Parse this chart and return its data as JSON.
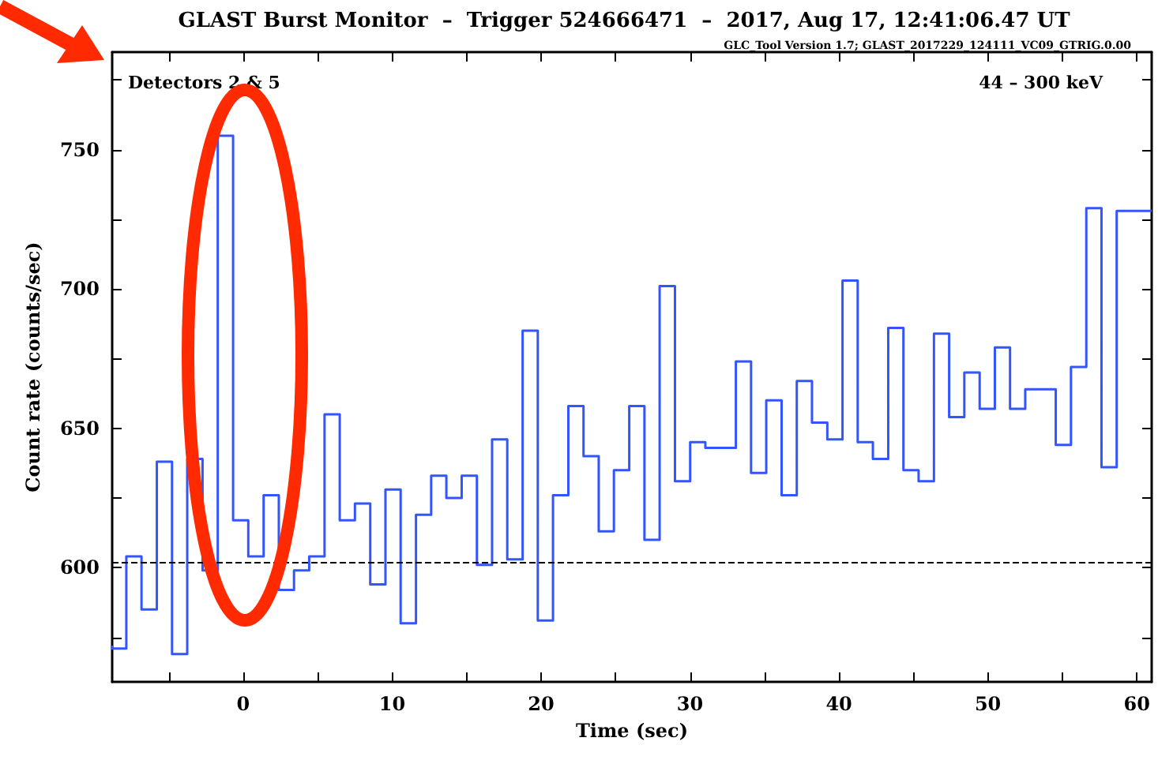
{
  "chart_data": {
    "type": "step",
    "title": "GLAST Burst Monitor  –  Trigger 524666471  –  2017, Aug 17, 12:41:06.47 UT",
    "xlabel": "Time (sec)",
    "ylabel": "Count rate (counts/sec)",
    "annotations": [
      "GLC_Tool Version 1.7; GLAST_2017229_124111_VC09_GTRIG.0.00",
      "Detectors 2 & 5",
      "44 – 300 keV"
    ],
    "x": [
      -8.8,
      -7.85,
      -6.83,
      -5.8,
      -4.78,
      -3.76,
      -2.73,
      -1.71,
      -0.68,
      0.34,
      1.37,
      2.39,
      3.41,
      4.43,
      5.46,
      6.48,
      7.5,
      8.53,
      9.55,
      10.57,
      11.6,
      12.62,
      13.64,
      14.67,
      15.69,
      16.71,
      17.73,
      18.76,
      19.78,
      20.8,
      21.83,
      22.85,
      23.87,
      24.89,
      25.92,
      26.94,
      27.96,
      28.99,
      30.01,
      31.03,
      32.06,
      33.08,
      34.1,
      35.12,
      36.15,
      37.17,
      38.19,
      39.22,
      40.24,
      41.26,
      42.28,
      43.31,
      44.33,
      45.35,
      46.38,
      47.4,
      48.42,
      49.45,
      50.47,
      51.49,
      52.51,
      53.54,
      54.56,
      55.58,
      56.61,
      57.63,
      58.65,
      59.67,
      61.0
    ],
    "series": [
      {
        "color": "#3355ff",
        "values": [
          572,
          571,
          604,
          585,
          638,
          569,
          639,
          599,
          755,
          617,
          604,
          626,
          592,
          599,
          604,
          655,
          617,
          623,
          594,
          628,
          580,
          619,
          633,
          625,
          633,
          601,
          646,
          603,
          685,
          581,
          626,
          658,
          640,
          613,
          635,
          658,
          610,
          701,
          631,
          645,
          643,
          643,
          674,
          634,
          660,
          626,
          667,
          652,
          646,
          703,
          645,
          639,
          686,
          635,
          631,
          684,
          654,
          670,
          657,
          679,
          657,
          664,
          664,
          644,
          672,
          729,
          636,
          728,
          728
        ]
      }
    ],
    "xlim": [
      -8.8,
      61
    ],
    "ylim": [
      559,
      785
    ],
    "xticks": [
      {
        "value": -5,
        "label": null
      },
      0,
      {
        "value": 5,
        "label": null
      },
      10,
      {
        "value": 15,
        "label": null
      },
      20,
      {
        "value": 25,
        "label": null
      },
      30,
      {
        "value": 35,
        "label": null
      },
      40,
      {
        "value": 45,
        "label": null
      },
      50,
      {
        "value": 55,
        "label": null
      },
      60
    ],
    "yticks": [
      {
        "value": 575,
        "label": null
      },
      600,
      {
        "value": 625,
        "label": null
      },
      650,
      {
        "value": 675,
        "label": null
      },
      700,
      {
        "value": 725,
        "label": null
      },
      750,
      {
        "value": 775,
        "label": null
      }
    ],
    "ref_lines": [
      {
        "axis": "y",
        "value": 602,
        "color": "#000000",
        "line_style": "dashed"
      }
    ],
    "marker": "none",
    "grid": false,
    "line_style": "solid"
  }
}
